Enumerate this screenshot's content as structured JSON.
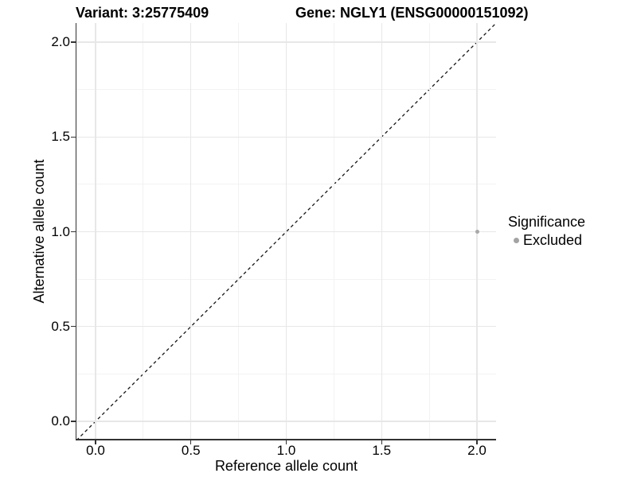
{
  "titles": {
    "variant": "Variant: 3:25775409",
    "gene": "Gene: NGLY1 (ENSG00000151092)"
  },
  "chart_data": {
    "type": "scatter",
    "title_left": "Variant: 3:25775409",
    "title_right": "Gene: NGLY1 (ENSG00000151092)",
    "xlabel": "Reference allele count",
    "ylabel": "Alternative allele count",
    "xlim": [
      -0.1,
      2.1
    ],
    "ylim": [
      -0.1,
      2.1
    ],
    "major_ticks": [
      0,
      0.5,
      1,
      1.5,
      2
    ],
    "minor_ticks": [
      0.25,
      0.75,
      1.25,
      1.75
    ],
    "x_tick_labels": [
      "0.0",
      "0.5",
      "1.0",
      "1.5",
      "2.0"
    ],
    "y_tick_labels": [
      "0.0",
      "0.5",
      "1.0",
      "1.5",
      "2.0"
    ],
    "grid": {
      "major_step": 0.5,
      "minor_step": 0.25,
      "visible": true
    },
    "identity_line": {
      "style": "dashed",
      "from": [
        -0.1,
        -0.1
      ],
      "to": [
        2.1,
        2.1
      ],
      "color": "#151515"
    },
    "series": [
      {
        "name": "Excluded",
        "color": "#a8a8a8",
        "points": [
          {
            "x": 2.0,
            "y": 1.0
          }
        ]
      }
    ],
    "legend": {
      "position": "right",
      "title": "Significance",
      "items": [
        {
          "label": "Excluded",
          "color": "#a3a3a3"
        }
      ]
    }
  },
  "colors": {
    "background": "#ffffff",
    "grid_major": "#e7e7e7",
    "grid_minor": "#f2f2f2",
    "axis": "#333333",
    "text": "#000000",
    "excluded_point": "#a8a8a8"
  }
}
